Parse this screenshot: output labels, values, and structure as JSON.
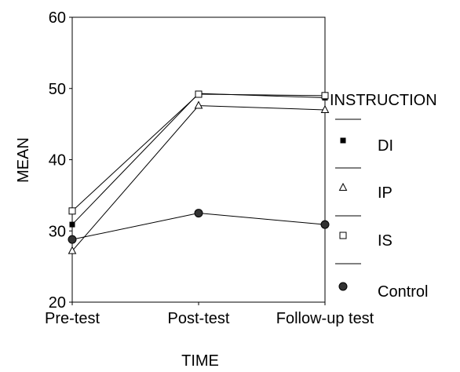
{
  "chart_data": {
    "type": "line",
    "title": "",
    "xlabel": "TIME",
    "ylabel": "MEAN",
    "categories": [
      "Pre-test",
      "Post-test",
      "Follow-up test"
    ],
    "ylim": [
      20,
      60
    ],
    "yticks": [
      20,
      30,
      40,
      50,
      60
    ],
    "legend": {
      "title": "INSTRUCTION",
      "placement": "right"
    },
    "series": [
      {
        "name": "DI",
        "marker": "filled-square",
        "values": [
          30.9,
          49.3,
          48.7
        ]
      },
      {
        "name": "IP",
        "marker": "open-triangle",
        "values": [
          27.2,
          47.6,
          47.0
        ]
      },
      {
        "name": "IS",
        "marker": "open-square",
        "values": [
          32.8,
          49.2,
          49.0
        ]
      },
      {
        "name": "Control",
        "marker": "filled-circle",
        "values": [
          28.8,
          32.5,
          30.9
        ]
      }
    ]
  }
}
